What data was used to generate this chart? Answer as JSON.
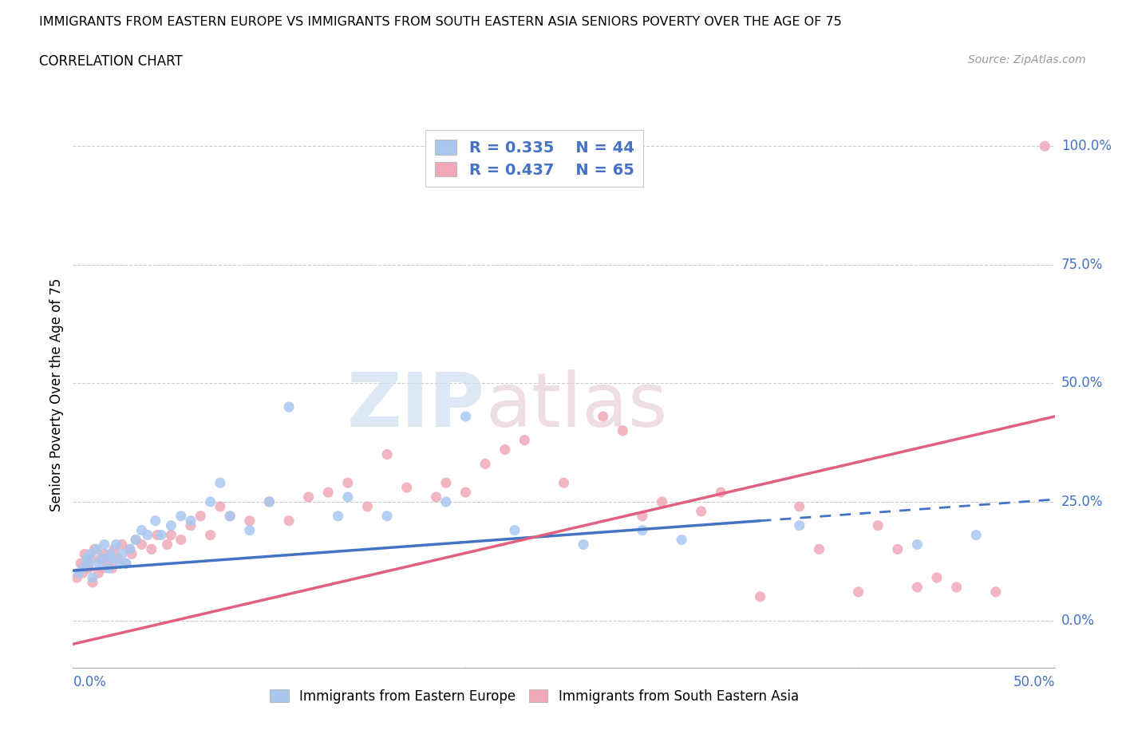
{
  "title": "IMMIGRANTS FROM EASTERN EUROPE VS IMMIGRANTS FROM SOUTH EASTERN ASIA SENIORS POVERTY OVER THE AGE OF 75",
  "subtitle": "CORRELATION CHART",
  "source": "Source: ZipAtlas.com",
  "ylabel": "Seniors Poverty Over the Age of 75",
  "ytick_labels": [
    "0.0%",
    "25.0%",
    "50.0%",
    "75.0%",
    "100.0%"
  ],
  "ytick_values": [
    0,
    25,
    50,
    75,
    100
  ],
  "xlim": [
    0,
    50
  ],
  "ylim": [
    -10,
    105
  ],
  "legend_label1": "Immigrants from Eastern Europe",
  "legend_label2": "Immigrants from South Eastern Asia",
  "R1": "0.335",
  "N1": "44",
  "R2": "0.437",
  "N2": "65",
  "color_blue": "#a8c8f0",
  "color_pink": "#f0a8b8",
  "color_blue_text": "#4472c4",
  "color_pink_text": "#e06080",
  "watermark_zip": "ZIP",
  "watermark_atlas": "atlas",
  "blue_trend_x0": 0,
  "blue_trend_y0": 10.5,
  "blue_trend_x1": 50,
  "blue_trend_y1": 25.5,
  "blue_solid_end": 35,
  "pink_trend_x0": 0,
  "pink_trend_y0": -5.0,
  "pink_trend_x1": 50,
  "pink_trend_y1": 43.0,
  "blue_scatter_x": [
    0.3,
    0.5,
    0.7,
    0.8,
    0.9,
    1.0,
    1.2,
    1.3,
    1.5,
    1.6,
    1.8,
    1.9,
    2.0,
    2.2,
    2.4,
    2.5,
    2.7,
    2.9,
    3.2,
    3.5,
    3.8,
    4.2,
    4.5,
    5.0,
    5.5,
    6.0,
    7.0,
    7.5,
    8.0,
    9.0,
    10.0,
    11.0,
    13.5,
    14.0,
    16.0,
    19.0,
    20.0,
    22.5,
    26.0,
    29.0,
    31.0,
    37.0,
    43.0,
    46.0
  ],
  "blue_scatter_y": [
    10,
    11,
    13,
    12,
    14,
    9,
    15,
    12,
    13,
    16,
    11,
    14,
    13,
    16,
    12,
    14,
    12,
    15,
    17,
    19,
    18,
    21,
    18,
    20,
    22,
    21,
    25,
    29,
    22,
    19,
    25,
    45,
    22,
    26,
    22,
    25,
    43,
    19,
    16,
    19,
    17,
    20,
    16,
    18
  ],
  "pink_scatter_x": [
    0.2,
    0.4,
    0.5,
    0.6,
    0.8,
    0.9,
    1.0,
    1.1,
    1.3,
    1.4,
    1.5,
    1.6,
    1.8,
    2.0,
    2.1,
    2.3,
    2.5,
    2.7,
    2.9,
    3.0,
    3.2,
    3.5,
    4.0,
    4.3,
    4.8,
    5.0,
    5.5,
    6.0,
    6.5,
    7.0,
    7.5,
    8.0,
    9.0,
    10.0,
    11.0,
    12.0,
    13.0,
    14.0,
    15.0,
    16.0,
    17.0,
    18.5,
    19.0,
    20.0,
    21.0,
    22.0,
    23.0,
    25.0,
    27.0,
    28.0,
    29.0,
    30.0,
    32.0,
    33.0,
    35.0,
    37.0,
    38.0,
    40.0,
    41.0,
    42.0,
    43.0,
    44.0,
    45.0,
    47.0,
    49.5
  ],
  "pink_scatter_y": [
    9,
    12,
    10,
    14,
    11,
    13,
    8,
    15,
    10,
    13,
    11,
    14,
    12,
    11,
    15,
    13,
    16,
    12,
    15,
    14,
    17,
    16,
    15,
    18,
    16,
    18,
    17,
    20,
    22,
    18,
    24,
    22,
    21,
    25,
    21,
    26,
    27,
    29,
    24,
    35,
    28,
    26,
    29,
    27,
    33,
    36,
    38,
    29,
    43,
    40,
    22,
    25,
    23,
    27,
    5,
    24,
    15,
    6,
    20,
    15,
    7,
    9,
    7,
    6,
    100
  ]
}
